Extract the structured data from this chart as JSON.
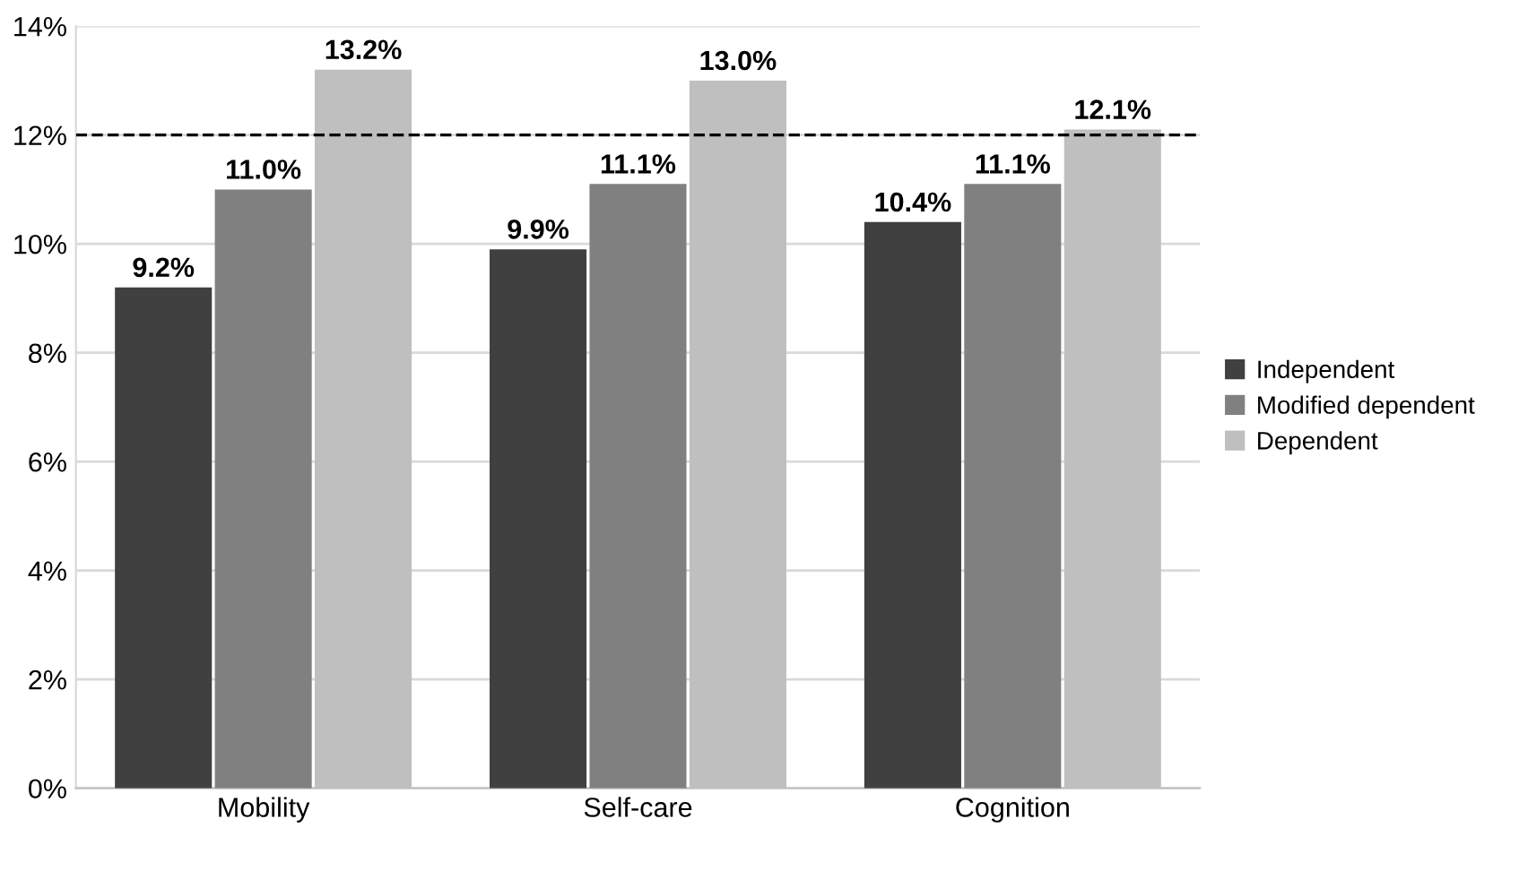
{
  "chart_data": {
    "type": "bar",
    "categories": [
      "Mobility",
      "Self-care",
      "Cognition"
    ],
    "series": [
      {
        "name": "Independent",
        "color": "#404040",
        "values": [
          9.2,
          9.9,
          10.4
        ],
        "value_labels": [
          "9.2%",
          "9.9%",
          "10.4%"
        ]
      },
      {
        "name": "Modified dependent",
        "color": "#808080",
        "values": [
          11.0,
          11.1,
          11.1
        ],
        "value_labels": [
          "11.0%",
          "11.1%",
          "11.1%"
        ]
      },
      {
        "name": "Dependent",
        "color": "#bfbfbf",
        "values": [
          13.2,
          13.0,
          12.1
        ],
        "value_labels": [
          "13.2%",
          "13.0%",
          "12.1%"
        ]
      }
    ],
    "ylim": [
      0,
      14
    ],
    "yticks": [
      {
        "value": 0,
        "label": "0%"
      },
      {
        "value": 2,
        "label": "2%"
      },
      {
        "value": 4,
        "label": "4%"
      },
      {
        "value": 6,
        "label": "6%"
      },
      {
        "value": 8,
        "label": "8%"
      },
      {
        "value": 10,
        "label": "10%"
      },
      {
        "value": 12,
        "label": "12%"
      },
      {
        "value": 14,
        "label": "14%"
      }
    ],
    "ref_lines": [
      {
        "axis": "y",
        "value": 12,
        "label": null,
        "color": "#000000",
        "line_style": "dashed"
      }
    ],
    "grid": "y",
    "legend": "right"
  }
}
